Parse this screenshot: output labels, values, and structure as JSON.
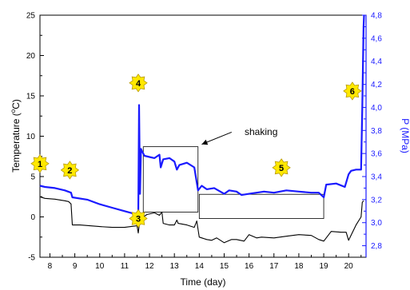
{
  "chart_data": {
    "type": "line",
    "xlabel": "Time (day)",
    "ylabel_left": "Temperature (°C)",
    "ylabel_left_main": "Temperature (",
    "ylabel_left_sup": "o",
    "ylabel_left_tail": "C)",
    "ylabel_right": "P (MPa)",
    "xlim": [
      7.6,
      20.7
    ],
    "ylim_left": [
      -5,
      25
    ],
    "ylim_right": [
      2.7,
      4.8
    ],
    "x_ticks": [
      "8",
      "9",
      "10",
      "11",
      "12",
      "13",
      "14",
      "15",
      "16",
      "17",
      "18",
      "19",
      "20"
    ],
    "y_left_ticks": [
      "-5",
      "0",
      "5",
      "10",
      "15",
      "20",
      "25"
    ],
    "y_right_ticks": [
      "2,8",
      "3,0",
      "3,2",
      "3,4",
      "3,6",
      "3,8",
      "4,0",
      "4,2",
      "4,4",
      "4,6",
      "4,8"
    ],
    "colors": {
      "temperature": "#000000",
      "pressure": "#1a1aff",
      "marker_fill": "#ffe800",
      "marker_stroke": "#b89a00"
    },
    "series": [
      {
        "axis": "left",
        "x": [
          7.6,
          7.8,
          8.2,
          8.6,
          8.75,
          8.85,
          8.9,
          9.2,
          9.6,
          10.0,
          10.5,
          11.0,
          11.5,
          11.55,
          11.62,
          11.66,
          11.75,
          11.9,
          12.2,
          12.4,
          12.5,
          12.55,
          12.8,
          13.0,
          13.1,
          13.15,
          13.5,
          13.8,
          13.9,
          14.0,
          14.3,
          14.5,
          14.7,
          15.0,
          15.3,
          15.5,
          15.8,
          16.0,
          16.3,
          16.5,
          17.0,
          17.5,
          18.0,
          18.5,
          18.8,
          19.0,
          19.3,
          19.7,
          19.9,
          20.0,
          20.3,
          20.5,
          20.55,
          20.6
        ],
        "y": [
          2.5,
          2.3,
          2.2,
          2.0,
          1.9,
          1.6,
          -1.0,
          -1.0,
          -1.1,
          -1.2,
          -1.3,
          -1.3,
          -1.1,
          -2.0,
          -0.2,
          -0.3,
          0.0,
          0.3,
          0.5,
          0.2,
          0.6,
          -0.8,
          -1.0,
          -1.0,
          -0.4,
          -0.8,
          -1.0,
          -1.3,
          -0.5,
          -2.5,
          -2.8,
          -2.9,
          -2.6,
          -3.2,
          -2.8,
          -2.8,
          -3.0,
          -2.2,
          -2.6,
          -2.5,
          -2.6,
          -2.4,
          -2.2,
          -2.3,
          -2.8,
          -3.0,
          -1.8,
          -1.9,
          -1.9,
          -2.9,
          -1.0,
          0.0,
          1.8,
          2.0
        ]
      },
      {
        "axis": "right",
        "x": [
          7.6,
          7.8,
          8.2,
          8.6,
          8.85,
          8.9,
          9.5,
          10.0,
          10.5,
          11.0,
          11.5,
          11.55,
          11.58,
          11.62,
          11.66,
          11.7,
          11.8,
          12.0,
          12.2,
          12.4,
          12.45,
          12.55,
          12.8,
          13.0,
          13.1,
          13.2,
          13.5,
          13.8,
          13.95,
          14.1,
          14.3,
          14.6,
          15.0,
          15.2,
          15.5,
          15.7,
          16.0,
          16.3,
          16.6,
          17.0,
          17.5,
          18.0,
          18.5,
          18.8,
          19.0,
          19.1,
          19.5,
          19.85,
          20.0,
          20.1,
          20.3,
          20.5,
          20.55,
          20.6,
          20.62
        ],
        "y": [
          3.32,
          3.31,
          3.3,
          3.28,
          3.26,
          3.22,
          3.2,
          3.16,
          3.13,
          3.1,
          3.07,
          3.05,
          4.02,
          3.25,
          3.64,
          3.62,
          3.58,
          3.57,
          3.56,
          3.59,
          3.48,
          3.55,
          3.56,
          3.53,
          3.46,
          3.5,
          3.52,
          3.48,
          3.28,
          3.32,
          3.29,
          3.3,
          3.25,
          3.28,
          3.27,
          3.24,
          3.25,
          3.26,
          3.27,
          3.26,
          3.28,
          3.27,
          3.26,
          3.26,
          3.22,
          3.33,
          3.34,
          3.31,
          3.42,
          3.45,
          3.46,
          3.46,
          4.0,
          4.7,
          4.8
        ]
      }
    ],
    "annotations": {
      "shaking_label": "shaking",
      "box1": {
        "x1": 11.75,
        "x2": 13.95,
        "y1_left": 8.7,
        "y2_left": 0.6
      },
      "box2": {
        "x1": 14.0,
        "x2": 19.0,
        "y1_left": 2.8,
        "y2_left": -0.2
      },
      "arrow": {
        "from_x": 15.3,
        "from_y_left": 10.5,
        "to_x": 14.1,
        "to_y_left": 9.0
      },
      "markers": [
        {
          "label": "1",
          "x": 7.6,
          "y_left": 6.6
        },
        {
          "label": "2",
          "x": 8.8,
          "y_left": 5.8
        },
        {
          "label": "3",
          "x": 11.55,
          "y_left": -0.2
        },
        {
          "label": "4",
          "x": 11.55,
          "y_left": 16.6
        },
        {
          "label": "5",
          "x": 17.3,
          "y_left": 6.1
        },
        {
          "label": "6",
          "x": 20.15,
          "y_left": 15.6
        }
      ]
    }
  }
}
